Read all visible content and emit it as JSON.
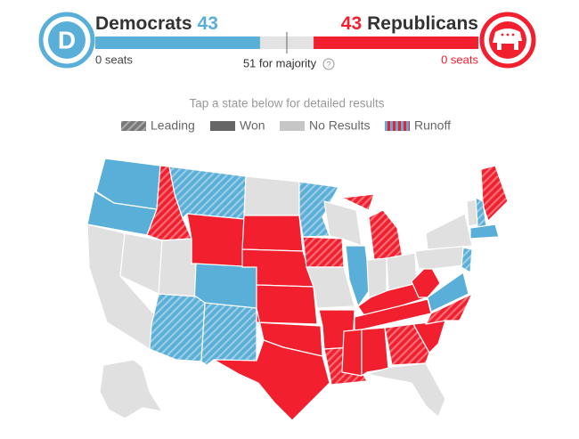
{
  "header": {
    "democrats": {
      "logo": "D",
      "name": "Democrats",
      "seats": 43,
      "status": "0 seats",
      "color": "#5aafd8"
    },
    "republicans": {
      "name": "Republicans",
      "seats": 43,
      "status": "0 seats",
      "color": "#f21f2e"
    },
    "majority": "51 for majority",
    "seat_range": [
      0,
      100
    ]
  },
  "instruction": "Tap a state below for detailed results",
  "legend": [
    {
      "label": "Leading"
    },
    {
      "label": "Won"
    },
    {
      "label": "No Results"
    },
    {
      "label": "Runoff"
    }
  ]
}
